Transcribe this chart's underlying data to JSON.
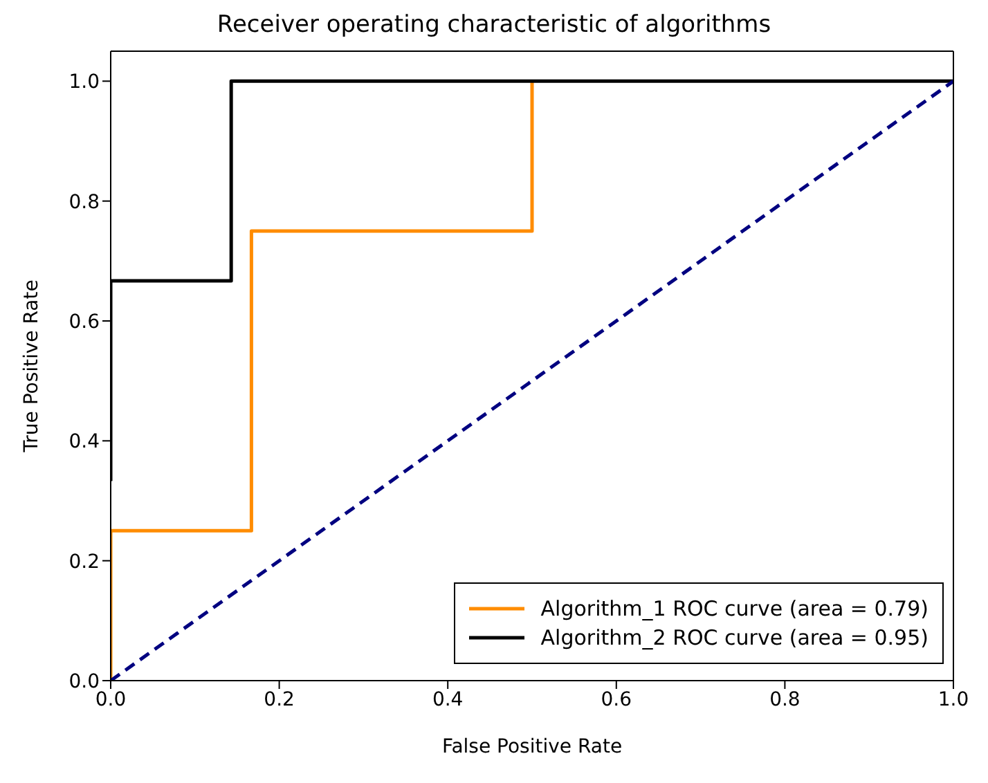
{
  "chart_data": {
    "type": "line",
    "title": "Receiver operating characteristic of algorithms",
    "xlabel": "False Positive Rate",
    "ylabel": "True Positive Rate",
    "series": [
      {
        "name": "Algorithm_1 ROC curve (area = 0.79)",
        "color": "#ff8c00",
        "x": [
          0,
          0,
          0.167,
          0.167,
          0.5,
          0.5
        ],
        "values": [
          0,
          0.25,
          0.25,
          0.75,
          0.75,
          1
        ]
      },
      {
        "name": "Algorithm_2 ROC curve (area = 0.95)",
        "color": "#000000",
        "x": [
          0,
          0,
          0.143,
          0.143,
          1
        ],
        "values": [
          0.333,
          0.667,
          0.667,
          1,
          1
        ]
      },
      {
        "color": "#000080",
        "x": [
          0,
          1
        ],
        "values": [
          0,
          1
        ],
        "line_style": "dashed"
      }
    ],
    "xlim": [
      0,
      1
    ],
    "ylim": [
      0,
      1.05
    ],
    "xticks": [
      {
        "value": 0,
        "label": "0.0"
      },
      {
        "value": 0.2,
        "label": "0.2"
      },
      {
        "value": 0.4,
        "label": "0.4"
      },
      {
        "value": 0.6,
        "label": "0.6"
      },
      {
        "value": 0.8,
        "label": "0.8"
      },
      {
        "value": 1,
        "label": "1.0"
      }
    ],
    "yticks": [
      {
        "value": 0,
        "label": "0.0"
      },
      {
        "value": 0.2,
        "label": "0.2"
      },
      {
        "value": 0.4,
        "label": "0.4"
      },
      {
        "value": 0.6,
        "label": "0.6"
      },
      {
        "value": 0.8,
        "label": "0.8"
      },
      {
        "value": 1,
        "label": "1.0"
      }
    ],
    "legend": "bottom right",
    "marker": "none"
  }
}
